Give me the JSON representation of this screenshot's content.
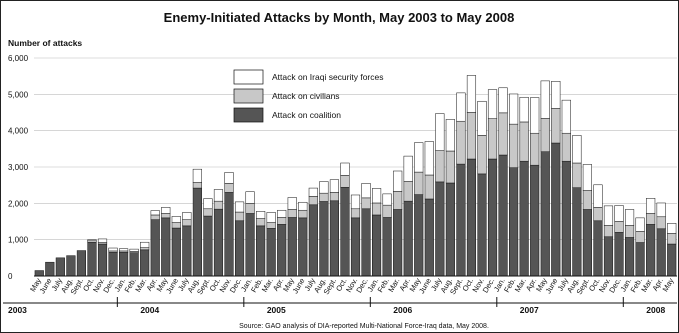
{
  "chart_data": {
    "type": "bar",
    "stacked": true,
    "title": "Enemy-Initiated Attacks by Month, May 2003 to May 2008",
    "ylabel": "Number of attacks",
    "ylim": [
      0,
      6000
    ],
    "yticks": [
      "0",
      "1,000",
      "2,000",
      "3,000",
      "4,000",
      "5,000",
      "6,000"
    ],
    "grid": true,
    "legend_position": "top-center",
    "source": "Source: GAO analysis of DIA-reported Multi-National Force-Iraq data, May 2008.",
    "years": [
      {
        "label": "2003",
        "start_index": 0
      },
      {
        "label": "2004",
        "start_index": 8
      },
      {
        "label": "2005",
        "start_index": 20
      },
      {
        "label": "2006",
        "start_index": 32
      },
      {
        "label": "2007",
        "start_index": 44
      },
      {
        "label": "2008",
        "start_index": 56
      }
    ],
    "categories": [
      "May",
      "June",
      "July",
      "Aug.",
      "Sept.",
      "Oct.",
      "Nov.",
      "Dec.",
      "Jan.",
      "Feb.",
      "Mar.",
      "Apr.",
      "May",
      "June",
      "July",
      "Aug.",
      "Sept.",
      "Oct.",
      "Nov.",
      "Dec.",
      "Jan.",
      "Feb.",
      "Mar.",
      "Apr.",
      "May",
      "June",
      "July",
      "Aug.",
      "Sept.",
      "Oct.",
      "Nov.",
      "Dec.",
      "Jan.",
      "Feb.",
      "Mar.",
      "Apr.",
      "May",
      "June",
      "July",
      "Aug.",
      "Sept.",
      "Oct.",
      "Nov.",
      "Dec.",
      "Jan.",
      "Feb.",
      "Mar.",
      "Apr.",
      "May",
      "June",
      "July",
      "Aug.",
      "Sept.",
      "Oct.",
      "Nov.",
      "Dec.",
      "Jan.",
      "Feb.",
      "Mar.",
      "Apr.",
      "May"
    ],
    "series": [
      {
        "name": "Attack on coalition",
        "color": "#555555",
        "values": [
          150,
          380,
          500,
          560,
          700,
          930,
          880,
          650,
          650,
          640,
          720,
          1550,
          1600,
          1320,
          1380,
          2420,
          1650,
          1840,
          2300,
          1520,
          1720,
          1380,
          1310,
          1420,
          1610,
          1600,
          1960,
          2050,
          2070,
          2440,
          1600,
          1850,
          1680,
          1610,
          1830,
          2060,
          2240,
          2120,
          2590,
          2560,
          3080,
          3220,
          2810,
          3220,
          3330,
          2980,
          3160,
          3050,
          3420,
          3660,
          3160,
          2430,
          1830,
          1520,
          1080,
          1200,
          1060,
          920,
          1420,
          1300,
          880
        ]
      },
      {
        "name": "Attack on civilians",
        "color": "#c8c8c8",
        "values": [
          0,
          0,
          0,
          0,
          0,
          40,
          40,
          40,
          40,
          40,
          60,
          130,
          120,
          150,
          170,
          160,
          200,
          220,
          250,
          240,
          280,
          200,
          160,
          190,
          220,
          210,
          230,
          230,
          230,
          330,
          250,
          300,
          330,
          340,
          500,
          540,
          620,
          660,
          860,
          880,
          1180,
          1280,
          1060,
          1110,
          1160,
          1200,
          1080,
          880,
          920,
          950,
          770,
          680,
          530,
          370,
          310,
          300,
          330,
          310,
          300,
          330,
          290
        ]
      },
      {
        "name": "Attack on Iraqi security forces",
        "color": "#ffffff",
        "values": [
          0,
          0,
          0,
          0,
          0,
          30,
          100,
          80,
          60,
          60,
          150,
          120,
          170,
          170,
          200,
          360,
          280,
          320,
          300,
          280,
          320,
          200,
          280,
          200,
          330,
          220,
          230,
          320,
          350,
          340,
          380,
          400,
          400,
          310,
          560,
          700,
          810,
          920,
          1020,
          870,
          780,
          1020,
          940,
          800,
          690,
          830,
          680,
          980,
          1030,
          750,
          910,
          760,
          710,
          620,
          540,
          440,
          440,
          370,
          420,
          380,
          280
        ]
      }
    ]
  }
}
